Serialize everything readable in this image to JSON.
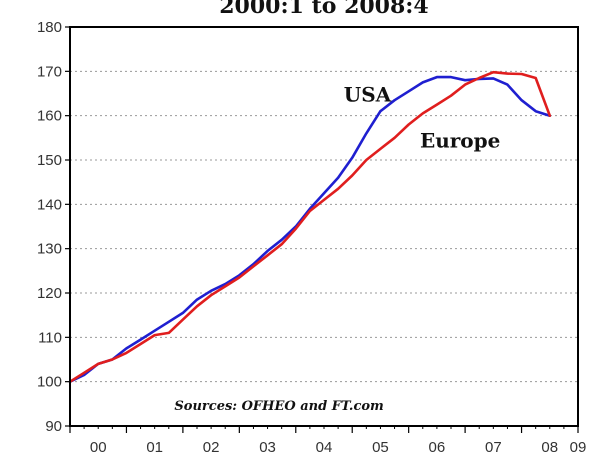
{
  "chart_data": {
    "type": "line",
    "title": "2000:1 to 2008:4",
    "xlabel": "",
    "ylabel": "",
    "x_tick_labels": [
      "00",
      "01",
      "02",
      "03",
      "04",
      "05",
      "06",
      "07",
      "08",
      "09"
    ],
    "xlim": [
      2000.0,
      2009.0
    ],
    "ylim": [
      90,
      180
    ],
    "y_ticks": [
      90,
      100,
      110,
      120,
      130,
      140,
      150,
      160,
      170,
      180
    ],
    "grid": "horizontal dotted",
    "annotation": "Sources: OFHEO and FT.com",
    "series": [
      {
        "name": "USA",
        "color": "#1f1fd0",
        "x": [
          2000.0,
          2000.25,
          2000.5,
          2000.75,
          2001.0,
          2001.25,
          2001.5,
          2001.75,
          2002.0,
          2002.25,
          2002.5,
          2002.75,
          2003.0,
          2003.25,
          2003.5,
          2003.75,
          2004.0,
          2004.25,
          2004.5,
          2004.75,
          2005.0,
          2005.25,
          2005.5,
          2005.75,
          2006.0,
          2006.25,
          2006.5,
          2006.75,
          2007.0,
          2007.25,
          2007.5,
          2007.75,
          2008.0,
          2008.25,
          2008.5
        ],
        "y": [
          100.0,
          101.5,
          104.0,
          105.0,
          107.5,
          109.5,
          111.5,
          113.5,
          115.5,
          118.5,
          120.5,
          122.0,
          124.0,
          126.5,
          129.5,
          132.0,
          135.0,
          139.0,
          142.5,
          146.0,
          150.5,
          156.0,
          161.0,
          163.5,
          165.5,
          167.5,
          168.7,
          168.7,
          168.0,
          168.3,
          168.4,
          167.0,
          163.5,
          161.0,
          160.0
        ]
      },
      {
        "name": "Europe",
        "color": "#e01e1e",
        "x": [
          2000.0,
          2000.25,
          2000.5,
          2000.75,
          2001.0,
          2001.25,
          2001.5,
          2001.75,
          2002.0,
          2002.25,
          2002.5,
          2002.75,
          2003.0,
          2003.25,
          2003.5,
          2003.75,
          2004.0,
          2004.25,
          2004.5,
          2004.75,
          2005.0,
          2005.25,
          2005.5,
          2005.75,
          2006.0,
          2006.25,
          2006.5,
          2006.75,
          2007.0,
          2007.25,
          2007.5,
          2007.75,
          2008.0,
          2008.25,
          2008.5
        ],
        "y": [
          100.0,
          102.0,
          104.0,
          105.0,
          106.5,
          108.5,
          110.5,
          111.0,
          114.0,
          117.0,
          119.5,
          121.5,
          123.5,
          126.0,
          128.5,
          131.0,
          134.5,
          138.5,
          141.0,
          143.5,
          146.5,
          150.0,
          152.5,
          155.0,
          158.0,
          160.5,
          162.5,
          164.5,
          167.0,
          168.5,
          169.8,
          169.5,
          169.4,
          168.5,
          160.0
        ]
      }
    ]
  }
}
